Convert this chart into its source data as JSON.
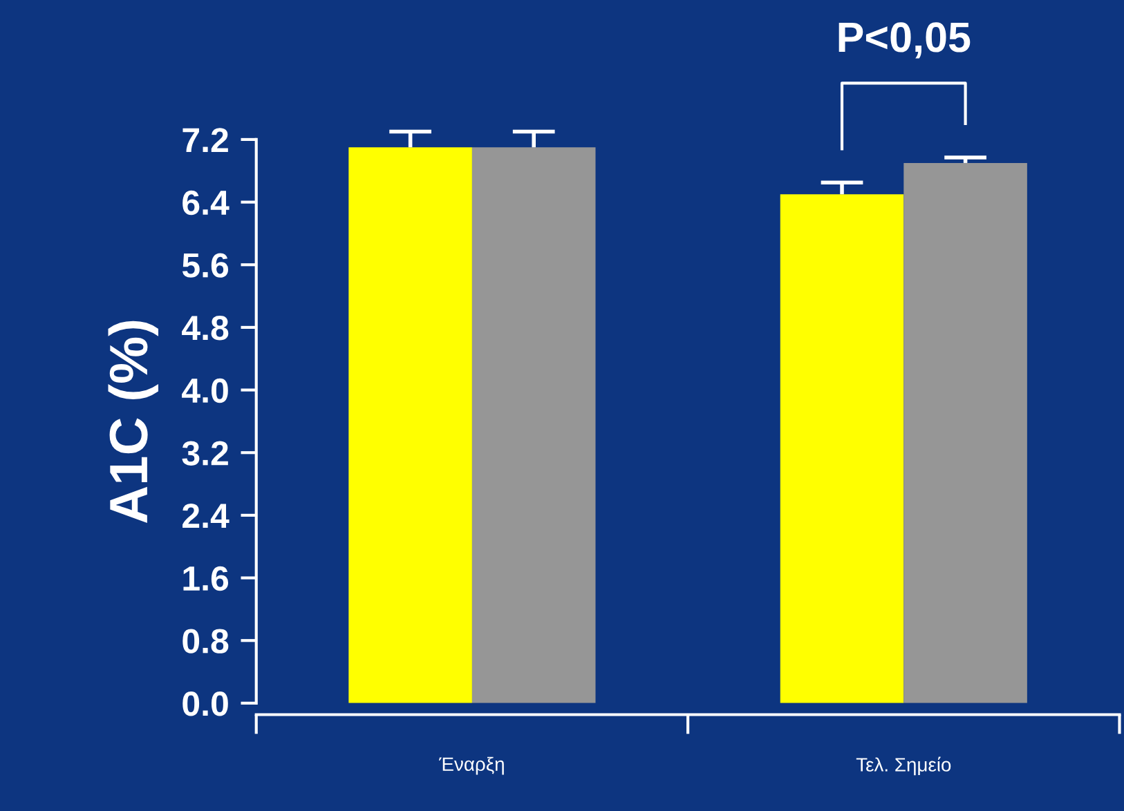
{
  "chart_data": {
    "type": "bar",
    "ylabel": "A1C (%)",
    "categories": [
      "Έναρξη",
      "Τελ. Σημείο"
    ],
    "series": [
      {
        "color": "#ffff00",
        "values": [
          7.1,
          6.5
        ],
        "errors": [
          [
            7.1,
            7.3
          ],
          [
            6.5,
            6.65
          ]
        ]
      },
      {
        "color": "#969696",
        "values": [
          7.1,
          6.9
        ],
        "errors": [
          [
            7.1,
            7.3
          ],
          [
            6.9,
            6.97
          ]
        ]
      }
    ],
    "ylim": [
      0,
      7.2
    ],
    "yticks": [
      {
        "value": 0,
        "label": "0.0"
      },
      0.8,
      1.6,
      2.4,
      3.2,
      {
        "value": 4,
        "label": "4.0"
      },
      4.8,
      5.6,
      6.4,
      7.2
    ],
    "annotations": [
      "P<0,05"
    ],
    "grid": false,
    "legend": false
  }
}
